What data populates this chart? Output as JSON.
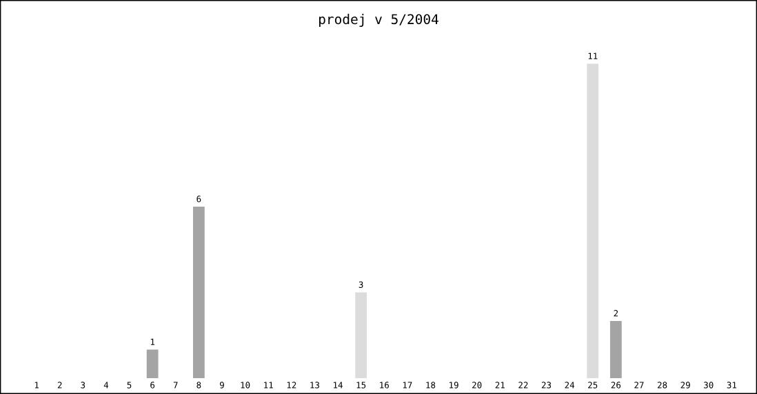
{
  "chart_data": {
    "type": "bar",
    "title": "prodej v 5/2004",
    "categories": [
      "1",
      "2",
      "3",
      "4",
      "5",
      "6",
      "7",
      "8",
      "9",
      "10",
      "11",
      "12",
      "13",
      "14",
      "15",
      "16",
      "17",
      "18",
      "19",
      "20",
      "21",
      "22",
      "23",
      "24",
      "25",
      "26",
      "27",
      "28",
      "29",
      "30",
      "31"
    ],
    "values": [
      0,
      0,
      0,
      0,
      0,
      1,
      0,
      6,
      0,
      0,
      0,
      0,
      0,
      0,
      3,
      0,
      0,
      0,
      0,
      0,
      0,
      0,
      0,
      0,
      11,
      2,
      0,
      0,
      0,
      0,
      0
    ],
    "colors": [
      "#dcdcdc",
      "#a4a4a4",
      "#dcdcdc",
      "#a4a4a4",
      "#dcdcdc",
      "#a4a4a4",
      "#dcdcdc",
      "#a4a4a4",
      "#dcdcdc",
      "#a4a4a4",
      "#dcdcdc",
      "#a4a4a4",
      "#dcdcdc",
      "#a4a4a4",
      "#dcdcdc",
      "#a4a4a4",
      "#dcdcdc",
      "#a4a4a4",
      "#dcdcdc",
      "#a4a4a4",
      "#dcdcdc",
      "#a4a4a4",
      "#dcdcdc",
      "#a4a4a4",
      "#dcdcdc",
      "#a4a4a4",
      "#dcdcdc",
      "#a4a4a4",
      "#dcdcdc",
      "#a4a4a4",
      "#dcdcdc"
    ],
    "value_labels": [
      null,
      null,
      null,
      null,
      null,
      "1",
      null,
      "6",
      null,
      null,
      null,
      null,
      null,
      null,
      "3",
      null,
      null,
      null,
      null,
      null,
      null,
      null,
      null,
      null,
      "11",
      "2",
      null,
      null,
      null,
      null,
      null
    ],
    "grid": false,
    "legend": false
  }
}
